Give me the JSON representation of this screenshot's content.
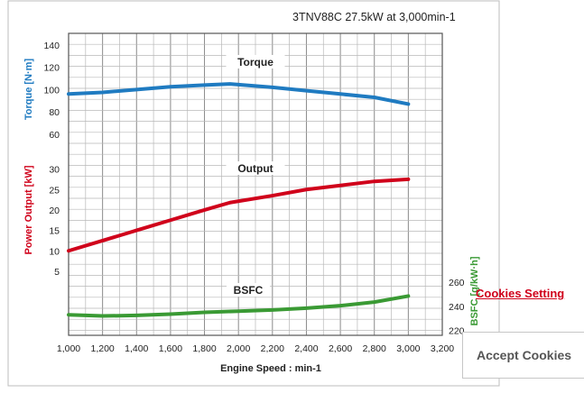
{
  "chart_data": {
    "title": "3TNV88C 27.5kW at 3,000min-1",
    "type": "line",
    "xlabel": "Engine Speed : min-1",
    "xlim": [
      1000,
      3200
    ],
    "x_ticks": [
      "1,000",
      "1,200",
      "1,400",
      "1,600",
      "1,800",
      "2,000",
      "2,200",
      "2,400",
      "2,600",
      "2,800",
      "3,000",
      "3,200"
    ],
    "panels": [
      {
        "axis_label": "Torque [N·m]",
        "axis_side": "left",
        "axis_color": "#1f7bc1",
        "ticks": [
          "60",
          "80",
          "100",
          "120",
          "140"
        ],
        "ylim": [
          55,
          148
        ],
        "series": [
          {
            "name": "Torque",
            "color": "#1f7bc1",
            "x": [
              1000,
              1200,
              1400,
              1600,
              1800,
              1950,
              2200,
              2400,
              2600,
              2800,
              3000
            ],
            "y": [
              96,
              97.5,
              100,
              102.5,
              104,
              105,
              102,
              99,
              96,
              93,
              87
            ]
          }
        ]
      },
      {
        "axis_label": "Power Output [kW]",
        "axis_side": "left",
        "axis_color": "#d0021b",
        "ticks": [
          "5",
          "10",
          "15",
          "20",
          "25",
          "30"
        ],
        "ylim": [
          3,
          33
        ],
        "series": [
          {
            "name": "Output",
            "color": "#d0021b",
            "x": [
              1000,
              1200,
              1400,
              1600,
              1800,
              1950,
              2200,
              2400,
              2600,
              2800,
              3000
            ],
            "y": [
              10,
              12.5,
              15,
              17.5,
              20,
              21.8,
              23.5,
              25,
              26,
              27,
              27.5
            ]
          }
        ]
      },
      {
        "axis_label": "BSFC [g/kW·h]",
        "axis_side": "right",
        "axis_color": "#3a9a34",
        "ticks": [
          "220",
          "240",
          "260"
        ],
        "ylim": [
          216,
          266
        ],
        "series": [
          {
            "name": "BSFC",
            "color": "#3a9a34",
            "x": [
              1000,
              1200,
              1400,
              1600,
              1800,
              2000,
              2200,
              2400,
              2600,
              2800,
              3000
            ],
            "y": [
              233,
              232,
              232.5,
              233.5,
              235,
              236,
              237,
              238.5,
              240.5,
              243.5,
              248.5
            ]
          }
        ]
      }
    ]
  },
  "cookies": {
    "settings_label": "Cookies Setting",
    "accept_label": "Accept Cookies"
  }
}
